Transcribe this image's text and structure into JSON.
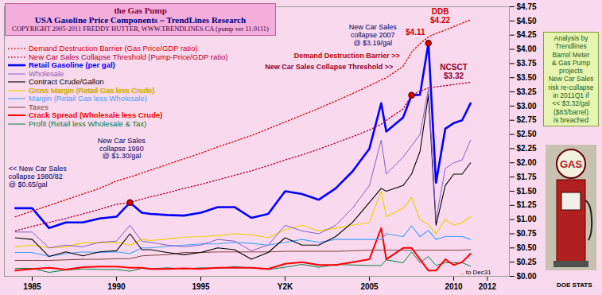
{
  "chart_data": {
    "type": "line",
    "title": "the Gas Pump",
    "subtitle": "USA Gasoline Price Components ~ TrendLines Research",
    "caption": "COPYRIGHT 2005-2011 FREDDY HUTTER, WWW.TRENDLINES.CA (pump ver 11.0111)",
    "side_note": "Analysis by\nTrendlines\nBarrel Meter\n& Gas Pump\nprojects\nNew Car Sales\nrisk re-collapse\nin 2011Q1 if\n<< $3.32/gal\n($83/barrel)\nis breached",
    "pump_label": "GAS",
    "source": "DOE STATS",
    "grid": false,
    "legend": "top-left",
    "x": [
      1984,
      1985,
      1986,
      1987,
      1988,
      1989,
      1990,
      1990.8,
      1991.5,
      1992,
      1993,
      1994,
      1995,
      1996,
      1997,
      1998,
      1999,
      2000,
      2001,
      2002,
      2003,
      2004,
      2005,
      2005.7,
      2006,
      2007,
      2007.5,
      2008,
      2008.5,
      2008.95,
      2009.5,
      2010,
      2010.5,
      2011
    ],
    "xlim": [
      1983.35,
      2013.3
    ],
    "xticks": [
      1985,
      1990,
      1995,
      {
        "value": 2000,
        "label": "Y2K"
      },
      2005,
      2010,
      2012
    ],
    "ylim": [
      0,
      4.75
    ],
    "yticks": [
      {
        "value": 0,
        "label": "$0.00"
      },
      {
        "value": 0.25,
        "label": "$0.25"
      },
      {
        "value": 0.5,
        "label": "$0.50"
      },
      {
        "value": 0.75,
        "label": "$0.75"
      },
      {
        "value": 1,
        "label": "$1.00"
      },
      {
        "value": 1.25,
        "label": "$1.25"
      },
      {
        "value": 1.5,
        "label": "$1.50"
      },
      {
        "value": 1.75,
        "label": "$1.75"
      },
      {
        "value": 2,
        "label": "$2.00"
      },
      {
        "value": 2.25,
        "label": "$2.25"
      },
      {
        "value": 2.5,
        "label": "$2.50"
      },
      {
        "value": 2.75,
        "label": "$2.75"
      },
      {
        "value": 3,
        "label": "$3.00"
      },
      {
        "value": 3.25,
        "label": "$3.25"
      },
      {
        "value": 3.5,
        "label": "$3.50"
      },
      {
        "value": 3.75,
        "label": "$3.75"
      },
      {
        "value": 4,
        "label": "$4.00"
      },
      {
        "value": 4.25,
        "label": "$4.25"
      },
      {
        "value": 4.5,
        "label": "$4.50"
      },
      {
        "value": 4.75,
        "label": "$4.75"
      }
    ],
    "series": [
      {
        "name": "Demand Destruction Barrier  (Gas Price/GDP ratio)",
        "color": "#e00000",
        "line_style": "dotted",
        "values": [
          1.05,
          1.15,
          1.25,
          1.35,
          1.45,
          1.55,
          1.68,
          1.75,
          1.82,
          1.87,
          1.97,
          2.07,
          2.17,
          2.28,
          2.38,
          2.48,
          2.6,
          2.72,
          2.84,
          2.96,
          3.09,
          3.22,
          3.36,
          3.46,
          3.5,
          3.7,
          3.95,
          4.1,
          4.22,
          4.28,
          4.34,
          4.4,
          4.46,
          4.52
        ]
      },
      {
        "name": "New Car Sales Collapse Threshold  (Pump-Price/GDP ratio)",
        "color": "#b00030",
        "line_style": "dotted",
        "values": [
          0.8,
          0.88,
          0.95,
          1.02,
          1.1,
          1.18,
          1.27,
          1.3,
          1.36,
          1.4,
          1.47,
          1.55,
          1.62,
          1.7,
          1.78,
          1.86,
          1.95,
          2.05,
          2.14,
          2.24,
          2.35,
          2.46,
          2.58,
          2.68,
          2.75,
          2.95,
          3.19,
          3.26,
          3.32,
          3.34,
          3.36,
          3.38,
          3.4,
          3.42
        ]
      },
      {
        "name": "Retail Gasoline (per gal)",
        "color": "#0000ff",
        "line_style": "solid",
        "values": [
          1.2,
          1.2,
          0.85,
          0.95,
          0.95,
          1.02,
          1.05,
          1.3,
          1.12,
          1.1,
          1.08,
          1.07,
          1.12,
          1.22,
          1.22,
          1.03,
          1.1,
          1.5,
          1.45,
          1.35,
          1.55,
          1.85,
          2.25,
          3.05,
          2.55,
          2.8,
          3.19,
          3.2,
          4.11,
          1.65,
          2.6,
          2.7,
          2.75,
          3.05
        ]
      },
      {
        "name": "Wholesale",
        "color": "#8060c0",
        "line_style": "solid",
        "values": [
          0.78,
          0.78,
          0.5,
          0.55,
          0.52,
          0.6,
          0.62,
          0.9,
          0.62,
          0.6,
          0.55,
          0.52,
          0.55,
          0.65,
          0.62,
          0.45,
          0.55,
          0.9,
          0.8,
          0.75,
          0.9,
          1.2,
          1.6,
          2.4,
          1.8,
          2.1,
          2.3,
          2.5,
          3.3,
          1.0,
          1.9,
          2.0,
          2.05,
          2.4
        ]
      },
      {
        "name": "Contract Crude/Gallon",
        "color": "#000000",
        "line_style": "solid",
        "values": [
          0.68,
          0.65,
          0.35,
          0.43,
          0.36,
          0.43,
          0.45,
          0.75,
          0.47,
          0.47,
          0.42,
          0.38,
          0.42,
          0.5,
          0.47,
          0.3,
          0.42,
          0.68,
          0.55,
          0.55,
          0.7,
          0.95,
          1.3,
          1.55,
          1.5,
          1.6,
          1.8,
          2.2,
          3.2,
          0.9,
          1.6,
          1.8,
          1.8,
          2.0
        ]
      },
      {
        "name": "Gross Margin (Retail Gas less Crude)",
        "color": "#f0d000",
        "line_style": "solid",
        "values": [
          0.52,
          0.55,
          0.5,
          0.52,
          0.59,
          0.59,
          0.6,
          0.55,
          0.65,
          0.63,
          0.66,
          0.69,
          0.7,
          0.72,
          0.75,
          0.73,
          0.68,
          0.82,
          0.9,
          0.8,
          0.85,
          0.9,
          0.95,
          1.5,
          1.05,
          1.2,
          1.39,
          1.0,
          0.91,
          0.75,
          1.0,
          0.9,
          0.95,
          1.05
        ]
      },
      {
        "name": "Margin (Retail Gas less Wholesale)",
        "color": "#3fa0ff",
        "line_style": "solid",
        "values": [
          0.42,
          0.42,
          0.35,
          0.4,
          0.43,
          0.42,
          0.43,
          0.4,
          0.5,
          0.5,
          0.53,
          0.55,
          0.57,
          0.57,
          0.6,
          0.58,
          0.55,
          0.6,
          0.65,
          0.6,
          0.65,
          0.65,
          0.65,
          0.65,
          0.75,
          0.7,
          0.89,
          0.7,
          0.81,
          0.65,
          0.7,
          0.7,
          0.7,
          0.65
        ]
      },
      {
        "name": "Taxes",
        "color": "#804040",
        "line_style": "solid",
        "values": [
          0.28,
          0.28,
          0.28,
          0.29,
          0.3,
          0.3,
          0.31,
          0.31,
          0.36,
          0.37,
          0.38,
          0.42,
          0.42,
          0.43,
          0.43,
          0.43,
          0.43,
          0.44,
          0.44,
          0.44,
          0.44,
          0.45,
          0.46,
          0.46,
          0.46,
          0.46,
          0.46,
          0.46,
          0.46,
          0.46,
          0.46,
          0.46,
          0.46,
          0.47
        ]
      },
      {
        "name": "Crack Spread  (Wholesale less Crude)",
        "color": "#ff0000",
        "line_style": "solid",
        "values": [
          0.1,
          0.13,
          0.15,
          0.12,
          0.16,
          0.17,
          0.17,
          0.15,
          0.15,
          0.13,
          0.13,
          0.14,
          0.13,
          0.15,
          0.15,
          0.15,
          0.13,
          0.22,
          0.25,
          0.2,
          0.2,
          0.25,
          0.3,
          0.85,
          0.3,
          0.5,
          0.5,
          0.3,
          0.1,
          0.1,
          0.3,
          0.2,
          0.25,
          0.4
        ]
      },
      {
        "name": "Profit (Retail less Wholesale & Tax)",
        "color": "#008040",
        "line_style": "solid",
        "values": [
          0.14,
          0.14,
          0.07,
          0.11,
          0.13,
          0.12,
          0.12,
          0.09,
          0.14,
          0.13,
          0.15,
          0.13,
          0.15,
          0.14,
          0.17,
          0.15,
          0.12,
          0.16,
          0.21,
          0.16,
          0.21,
          0.2,
          0.19,
          0.19,
          0.29,
          0.24,
          0.43,
          0.24,
          0.35,
          0.19,
          0.24,
          0.24,
          0.24,
          0.18
        ]
      }
    ],
    "highlights": [
      {
        "x": 1990.8,
        "y": 1.3
      },
      {
        "x": 2007.5,
        "y": 3.19
      },
      {
        "x": 2008.5,
        "y": 4.11
      }
    ],
    "annotations": [
      {
        "text": "<< New Car Sales\ncollapse 1980/82\n@ $0.65/gal",
        "x": 1983.6,
        "y": 1.95
      },
      {
        "text": "New Car Sales\ncollapse 1990\n@ $1.30/gal",
        "x": 1990.3,
        "y": 2.45
      },
      {
        "text": "New Car Sales\ncollapse 2007\n@ $3.19/gal",
        "x": 2005.2,
        "y": 4.45
      },
      {
        "text": "$4.11",
        "x": 2008.3,
        "y": 4.3
      },
      {
        "text": "DDB\n$4.22",
        "x": 2009.2,
        "y": 4.46
      },
      {
        "text": "NCSCT\n$3.32",
        "x": 2010,
        "y": 3.48
      },
      {
        "text": "Demand Destruction Barrier >>",
        "x": 2006.8,
        "y": 3.89
      },
      {
        "text": "New Car Sales Collapse Threshold >>",
        "x": 2006.4,
        "y": 3.69
      },
      {
        "text": ".. to Dec31",
        "x": 2010.4,
        "y": 0.07
      }
    ]
  }
}
